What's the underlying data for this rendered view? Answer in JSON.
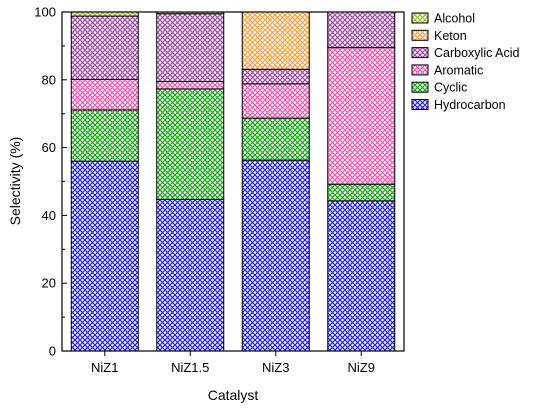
{
  "chart_data": {
    "type": "bar",
    "stacked": true,
    "xlabel": "Catalyst",
    "ylabel": "Selectivity (%)",
    "ylim": [
      0,
      100
    ],
    "yticks": [
      0,
      20,
      40,
      60,
      80,
      100
    ],
    "categories": [
      "NiZ1",
      "NiZ1.5",
      "NiZ3",
      "NiZ9"
    ],
    "series": [
      {
        "name": "Hydrocarbon",
        "color": "#2424f0",
        "values": [
          56,
          44.7,
          56.3,
          44.3
        ]
      },
      {
        "name": "Cyclic",
        "color": "#1fa51f",
        "values": [
          15.1,
          32.6,
          12.4,
          4.9
        ]
      },
      {
        "name": "Aromatic",
        "color": "#ee5ab4",
        "values": [
          9,
          2.2,
          10.1,
          40.3
        ]
      },
      {
        "name": "Carboxylic Acid",
        "color": "#a04ba8",
        "values": [
          18.7,
          20,
          4.3,
          10.5
        ]
      },
      {
        "name": "Keton",
        "color": "#f5a64d",
        "values": [
          0,
          0,
          16.9,
          0
        ]
      },
      {
        "name": "Alcohol",
        "color": "#9bbf3a",
        "values": [
          1.2,
          0.5,
          0,
          0
        ]
      }
    ],
    "legend_position": "top-right",
    "grid": false
  }
}
